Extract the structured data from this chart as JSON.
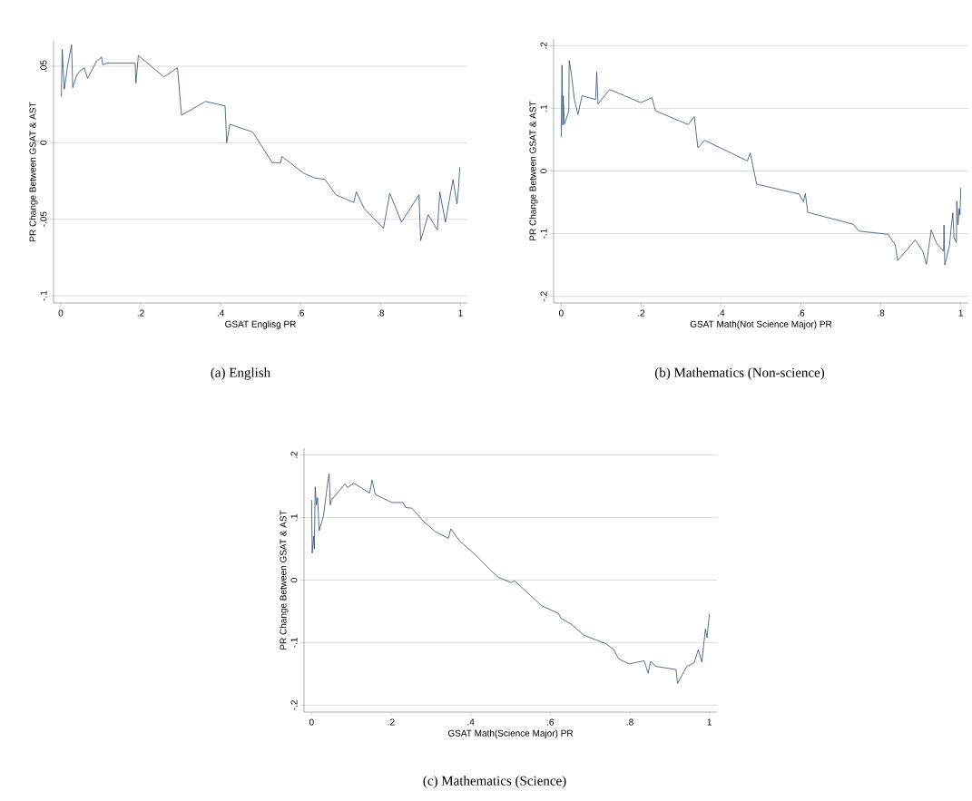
{
  "chart_data": [
    {
      "type": "line",
      "xlabel": "GSAT Englisg PR",
      "ylabel": "PR Change Between GSAT & AST",
      "annotations": [
        "(a) English"
      ],
      "x": [
        0.0015,
        0.0038,
        0.006,
        0.009,
        0.017,
        0.027,
        0.03,
        0.04,
        0.048,
        0.059,
        0.067,
        0.089,
        0.102,
        0.105,
        0.116,
        0.186,
        0.188,
        0.194,
        0.258,
        0.292,
        0.302,
        0.362,
        0.411,
        0.415,
        0.423,
        0.48,
        0.529,
        0.55,
        0.553,
        0.608,
        0.635,
        0.661,
        0.688,
        0.733,
        0.739,
        0.759,
        0.807,
        0.823,
        0.852,
        0.896,
        0.9,
        0.919,
        0.942,
        0.948,
        0.962,
        0.981,
        0.991,
        0.995,
        0.998
      ],
      "series": [
        {
          "color": "#2b4c6f",
          "values": [
            0.03,
            0.061,
            0.048,
            0.035,
            0.05,
            0.064,
            0.036,
            0.044,
            0.047,
            0.049,
            0.042,
            0.053,
            0.056,
            0.051,
            0.052,
            0.052,
            0.039,
            0.057,
            0.043,
            0.049,
            0.018,
            0.027,
            0.024,
            0.0,
            0.012,
            0.007,
            -0.013,
            -0.013,
            -0.009,
            -0.02,
            -0.023,
            -0.024,
            -0.034,
            -0.039,
            -0.032,
            -0.043,
            -0.056,
            -0.033,
            -0.052,
            -0.034,
            -0.064,
            -0.047,
            -0.057,
            -0.032,
            -0.052,
            -0.024,
            -0.04,
            -0.029,
            -0.016
          ]
        }
      ],
      "xlim": [
        -0.018,
        1.017
      ],
      "ylim": [
        -0.1047,
        0.0666
      ],
      "xticks": [
        0,
        {
          "value": 0.2,
          "label": ".2"
        },
        {
          "value": 0.4,
          "label": ".4"
        },
        {
          "value": 0.6,
          "label": ".6"
        },
        {
          "value": 0.8,
          "label": ".8"
        },
        1
      ],
      "yticks": [
        {
          "value": -0.1,
          "label": "-.1"
        },
        {
          "value": -0.05,
          "label": "-.05"
        },
        0,
        {
          "value": 0.05,
          "label": ".05"
        }
      ],
      "grid": "y"
    },
    {
      "type": "line",
      "xlabel": "GSAT Math(Not Science Major) PR",
      "ylabel": "PR Change Between GSAT & AST",
      "annotations": [
        "(b) Mathematics (Non-science)"
      ],
      "x": [
        0,
        0.002,
        0.004,
        0.005,
        0.008,
        0.019,
        0.02,
        0.025,
        0.033,
        0.042,
        0.052,
        0.086,
        0.089,
        0.092,
        0.121,
        0.159,
        0.199,
        0.227,
        0.236,
        0.318,
        0.333,
        0.342,
        0.359,
        0.466,
        0.473,
        0.489,
        0.596,
        0.606,
        0.611,
        0.617,
        0.731,
        0.745,
        0.818,
        0.836,
        0.842,
        0.886,
        0.905,
        0.914,
        0.926,
        0.939,
        0.957,
        0.958,
        0.96,
        0.972,
        0.975,
        0.98,
        0.983,
        0.989,
        0.99,
        0.993,
        0.996,
        0.998,
        1.0
      ],
      "series": [
        {
          "color": "#2b4c6f",
          "values": [
            0.054,
            0.169,
            0.073,
            0.12,
            0.075,
            0.095,
            0.176,
            0.157,
            0.114,
            0.09,
            0.12,
            0.114,
            0.158,
            0.107,
            0.13,
            0.12,
            0.109,
            0.117,
            0.096,
            0.074,
            0.087,
            0.037,
            0.049,
            0.016,
            0.029,
            -0.021,
            -0.037,
            -0.049,
            -0.036,
            -0.066,
            -0.085,
            -0.096,
            -0.101,
            -0.118,
            -0.143,
            -0.11,
            -0.128,
            -0.149,
            -0.094,
            -0.115,
            -0.128,
            -0.086,
            -0.15,
            -0.118,
            -0.096,
            -0.067,
            -0.106,
            -0.114,
            -0.048,
            -0.086,
            -0.06,
            -0.07,
            -0.027
          ]
        }
      ],
      "xlim": [
        -0.019,
        1.019
      ],
      "ylim": [
        -0.2106,
        0.2106
      ],
      "xticks": [
        0,
        {
          "value": 0.2,
          "label": ".2"
        },
        {
          "value": 0.4,
          "label": ".4"
        },
        {
          "value": 0.6,
          "label": ".6"
        },
        {
          "value": 0.8,
          "label": ".8"
        },
        1
      ],
      "yticks": [
        {
          "value": -0.2,
          "label": "-.2"
        },
        {
          "value": -0.1,
          "label": "-.1"
        },
        0,
        {
          "value": 0.1,
          "label": ".1"
        },
        {
          "value": 0.2,
          "label": ".2"
        }
      ],
      "grid": "y"
    },
    {
      "type": "line",
      "xlabel": "GSAT Math(Science Major)  PR",
      "ylabel": "PR Change Between GSAT & AST",
      "annotations": [
        "(c) Mathematics (Science)"
      ],
      "x": [
        0,
        0.0015,
        0.005,
        0.007,
        0.009,
        0.012,
        0.015,
        0.019,
        0.03,
        0.04,
        0.044,
        0.047,
        0.05,
        0.084,
        0.09,
        0.106,
        0.146,
        0.152,
        0.16,
        0.202,
        0.23,
        0.236,
        0.252,
        0.281,
        0.312,
        0.344,
        0.35,
        0.373,
        0.411,
        0.456,
        0.471,
        0.502,
        0.51,
        0.551,
        0.578,
        0.62,
        0.627,
        0.654,
        0.684,
        0.741,
        0.759,
        0.772,
        0.798,
        0.836,
        0.846,
        0.852,
        0.866,
        0.916,
        0.92,
        0.943,
        0.962,
        0.972,
        0.981,
        0.99,
        0.994,
        1.0
      ],
      "series": [
        {
          "color": "#2b4c6f",
          "values": [
            0.128,
            0.043,
            0.07,
            0.05,
            0.149,
            0.12,
            0.132,
            0.079,
            0.103,
            0.154,
            0.17,
            0.12,
            0.128,
            0.154,
            0.148,
            0.155,
            0.139,
            0.16,
            0.137,
            0.124,
            0.124,
            0.116,
            0.115,
            0.094,
            0.077,
            0.067,
            0.082,
            0.062,
            0.041,
            0.012,
            0.004,
            -0.004,
            -0.001,
            -0.025,
            -0.041,
            -0.053,
            -0.061,
            -0.071,
            -0.088,
            -0.102,
            -0.111,
            -0.126,
            -0.134,
            -0.129,
            -0.149,
            -0.13,
            -0.138,
            -0.143,
            -0.165,
            -0.138,
            -0.132,
            -0.111,
            -0.131,
            -0.078,
            -0.092,
            -0.054
          ]
        }
      ],
      "xlim": [
        -0.019,
        1.019
      ],
      "ylim": [
        -0.211,
        0.211
      ],
      "xticks": [
        0,
        {
          "value": 0.2,
          "label": ".2"
        },
        {
          "value": 0.4,
          "label": ".4"
        },
        {
          "value": 0.6,
          "label": ".6"
        },
        {
          "value": 0.8,
          "label": ".8"
        },
        1
      ],
      "yticks": [
        {
          "value": -0.2,
          "label": "-.2"
        },
        {
          "value": -0.1,
          "label": "-.1"
        },
        0,
        {
          "value": 0.1,
          "label": ".1"
        },
        {
          "value": 0.2,
          "label": ".2"
        }
      ],
      "grid": "y"
    }
  ]
}
